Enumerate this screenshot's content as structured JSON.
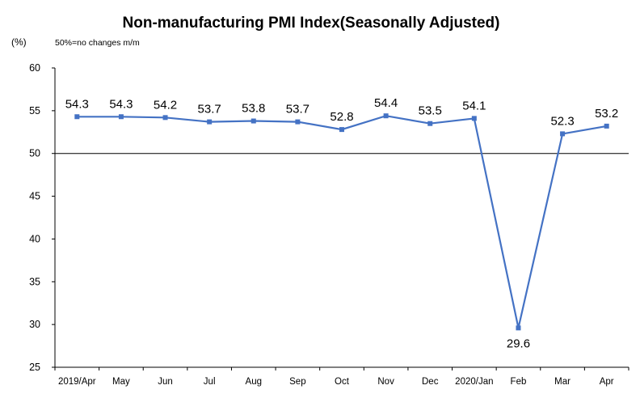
{
  "chart_data": {
    "type": "line",
    "title": "Non-manufacturing PMI Index(Seasonally Adjusted)",
    "ylabel": "(%)",
    "annotation": "50%=no changes m/m",
    "categories": [
      "2019/Apr",
      "May",
      "Jun",
      "Jul",
      "Aug",
      "Sep",
      "Oct",
      "Nov",
      "Dec",
      "2020/Jan",
      "Feb",
      "Mar",
      "Apr"
    ],
    "series": [
      {
        "values": [
          54.3,
          54.3,
          54.2,
          53.7,
          53.8,
          53.7,
          52.8,
          54.4,
          53.5,
          54.1,
          29.6,
          52.3,
          53.2
        ]
      }
    ],
    "data_labels": [
      "54.3",
      "54.3",
      "54.2",
      "53.7",
      "53.8",
      "53.7",
      "52.8",
      "54.4",
      "53.5",
      "54.1",
      "29.6",
      "52.3",
      "53.2"
    ],
    "yticks": [
      "60",
      "55",
      "50",
      "45",
      "40",
      "35",
      "30",
      "25"
    ],
    "ylim": [
      25,
      60
    ],
    "reference_line": 50,
    "grid": false,
    "line_color": "#4472c4",
    "axis_color": "#000000"
  }
}
